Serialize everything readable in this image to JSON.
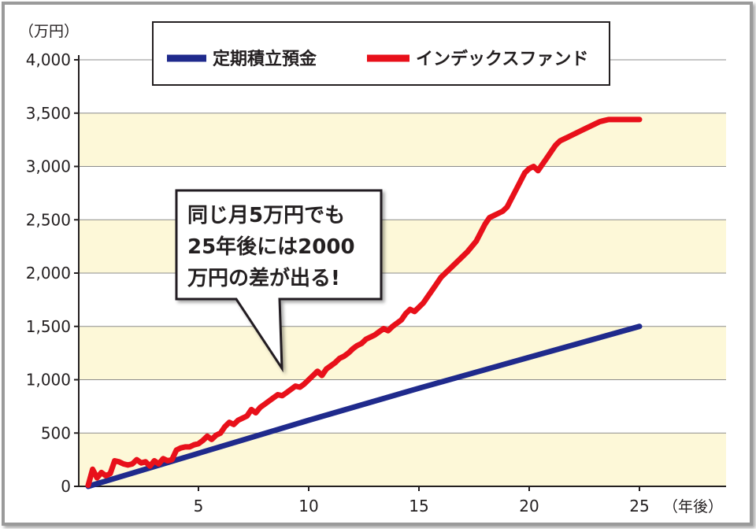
{
  "chart_data": {
    "type": "line",
    "y_unit_label": "（万円）",
    "x_unit_label": "（年後）",
    "xlim": [
      0,
      25
    ],
    "ylim": [
      0,
      4000
    ],
    "y_ticks": [
      {
        "value": 0,
        "label": "0"
      },
      {
        "value": 500,
        "label": "500"
      },
      {
        "value": 1000,
        "label": "1,000"
      },
      {
        "value": 1500,
        "label": "1,500"
      },
      {
        "value": 2000,
        "label": "2,000"
      },
      {
        "value": 2500,
        "label": "2,500"
      },
      {
        "value": 3000,
        "label": "3,000"
      },
      {
        "value": 3500,
        "label": "3,500"
      },
      {
        "value": 4000,
        "label": "4,000"
      }
    ],
    "x_ticks": [
      {
        "value": 5,
        "label": "5"
      },
      {
        "value": 10,
        "label": "10"
      },
      {
        "value": 15,
        "label": "15"
      },
      {
        "value": 20,
        "label": "20"
      },
      {
        "value": 25,
        "label": "25"
      }
    ],
    "grid": true,
    "background_bands_color": "#fdf8d8",
    "legend_position": "top",
    "series": [
      {
        "name": "定期積立預金",
        "color": "#1f2a8c",
        "x": [
          0,
          10,
          15,
          20,
          25
        ],
        "values": [
          0,
          620,
          920,
          1210,
          1500
        ]
      },
      {
        "name": "インデックスファンド",
        "color": "#e8101a",
        "x": [
          0,
          0.2,
          0.4,
          0.6,
          0.8,
          1.0,
          1.2,
          1.4,
          1.6,
          1.8,
          2.0,
          2.2,
          2.4,
          2.6,
          2.8,
          3.0,
          3.2,
          3.4,
          3.6,
          3.8,
          4.0,
          4.2,
          4.4,
          4.6,
          4.8,
          5.0,
          5.2,
          5.4,
          5.6,
          5.8,
          6.0,
          6.2,
          6.4,
          6.6,
          6.8,
          7.0,
          7.2,
          7.4,
          7.6,
          7.8,
          8.0,
          8.2,
          8.4,
          8.6,
          8.8,
          9.0,
          9.2,
          9.4,
          9.6,
          9.8,
          10.0,
          10.2,
          10.4,
          10.6,
          10.8,
          11.0,
          11.2,
          11.4,
          11.6,
          11.8,
          12.0,
          12.2,
          12.4,
          12.6,
          12.8,
          13.0,
          13.2,
          13.4,
          13.6,
          13.8,
          14.0,
          14.2,
          14.4,
          14.6,
          14.8,
          15.0,
          15.2,
          15.4,
          15.6,
          15.8,
          16.0,
          16.2,
          16.4,
          16.6,
          16.8,
          17.0,
          17.2,
          17.4,
          17.6,
          17.8,
          18.0,
          18.2,
          18.4,
          18.6,
          18.8,
          19.0,
          19.2,
          19.4,
          19.6,
          19.8,
          20.0,
          20.2,
          20.4,
          20.6,
          20.8,
          21.0,
          21.2,
          21.4,
          21.6,
          21.8,
          22.0,
          22.2,
          22.4,
          22.6,
          22.8,
          23.0,
          23.2,
          23.4,
          23.6,
          23.8,
          24.0,
          24.2,
          24.4,
          24.6,
          24.8,
          25.0
        ],
        "values": [
          10,
          160,
          80,
          130,
          100,
          120,
          240,
          230,
          210,
          200,
          210,
          250,
          220,
          230,
          190,
          240,
          210,
          260,
          240,
          250,
          340,
          360,
          370,
          370,
          390,
          400,
          430,
          470,
          440,
          480,
          500,
          560,
          600,
          580,
          620,
          640,
          660,
          720,
          690,
          740,
          770,
          800,
          830,
          860,
          850,
          880,
          910,
          940,
          930,
          960,
          1000,
          1040,
          1080,
          1040,
          1100,
          1130,
          1160,
          1200,
          1220,
          1250,
          1290,
          1320,
          1340,
          1380,
          1400,
          1420,
          1450,
          1480,
          1460,
          1500,
          1530,
          1560,
          1620,
          1660,
          1640,
          1680,
          1720,
          1780,
          1840,
          1900,
          1960,
          2000,
          2040,
          2080,
          2120,
          2160,
          2200,
          2250,
          2300,
          2380,
          2460,
          2520,
          2540,
          2560,
          2580,
          2620,
          2700,
          2780,
          2860,
          2940,
          2980,
          3000,
          2960,
          3020,
          3080,
          3140,
          3200,
          3240,
          3260,
          3280,
          3300,
          3320,
          3340,
          3360,
          3380,
          3400,
          3420,
          3430,
          3440,
          3440,
          3440,
          3440,
          3440,
          3440,
          3440,
          3440
        ]
      }
    ],
    "annotation": {
      "lines": [
        "同じ月5万円でも",
        "25年後には2000",
        "万円の差が出る!"
      ]
    }
  }
}
